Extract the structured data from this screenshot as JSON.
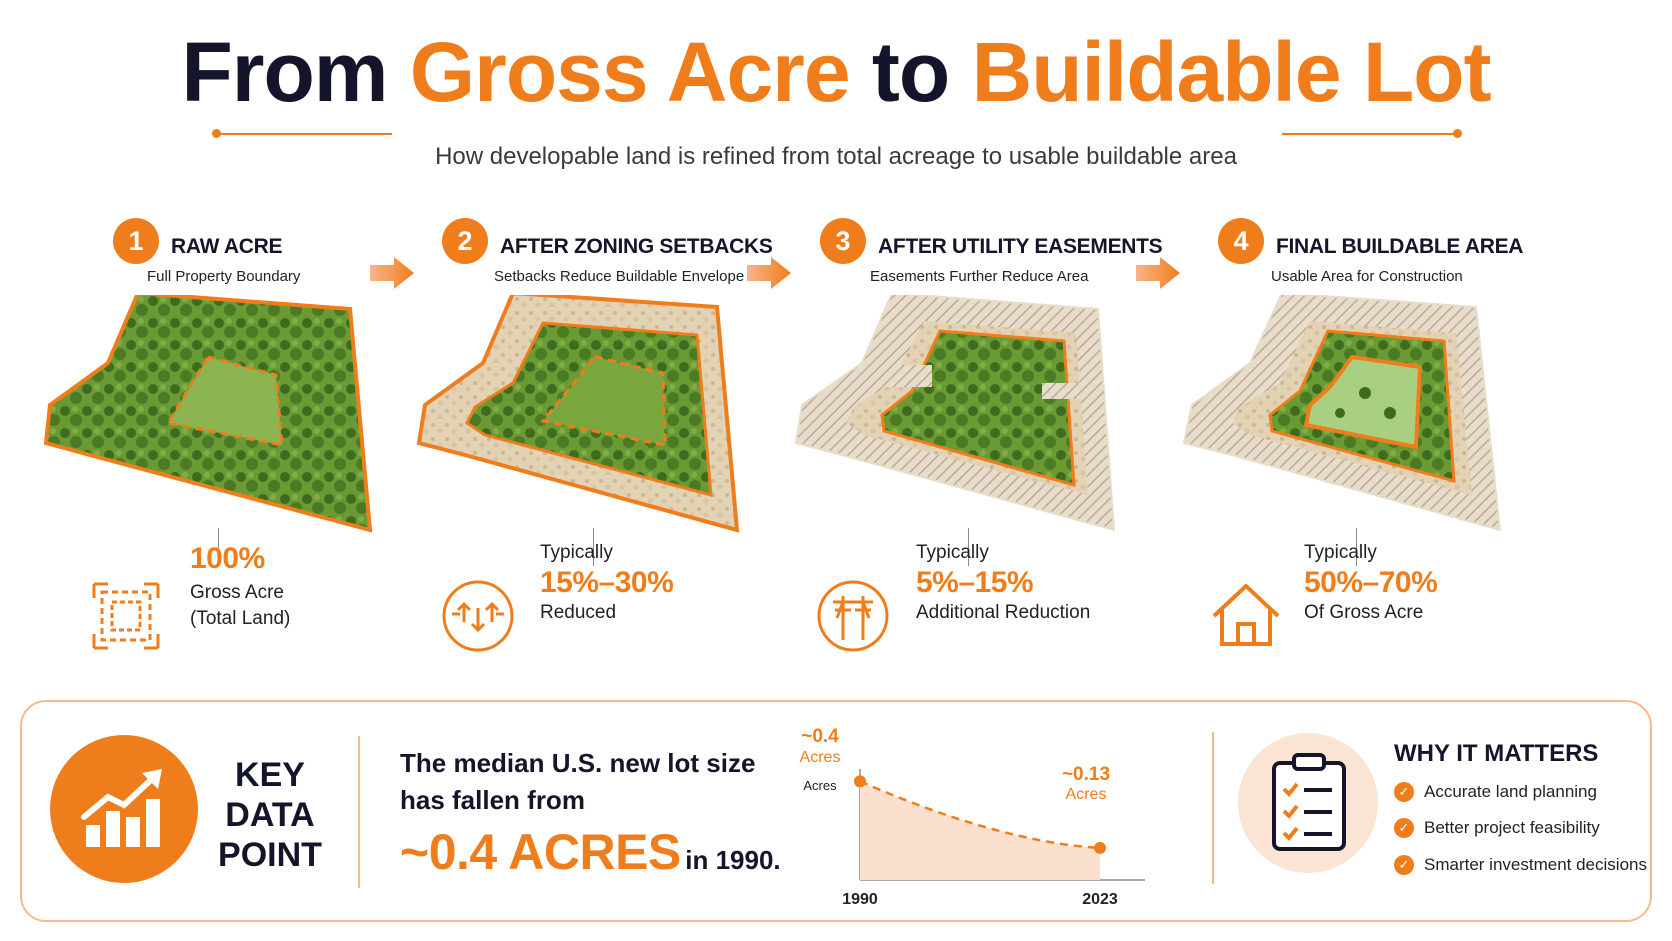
{
  "title": {
    "part1": "From",
    "part2": "Gross Acre",
    "part3": "to",
    "part4": "Buildable Lot"
  },
  "subtitle": "How developable land is refined from total acreage to usable buildable area",
  "colors": {
    "accent": "#f07d1c",
    "dark": "#14142b",
    "accent_light": "#fbe4d3"
  },
  "steps": [
    {
      "number": "1",
      "title": "RAW ACRE",
      "subtitle": "Full Property Boundary",
      "icon": "boundary-icon",
      "stat_pre": "",
      "stat_value": "100%",
      "stat_label_1": "Gross Acre",
      "stat_label_2": "(Total Land)"
    },
    {
      "number": "2",
      "title": "AFTER ZONING SETBACKS",
      "subtitle": "Setbacks Reduce Buildable Envelope",
      "icon": "setback-arrows-icon",
      "stat_pre": "Typically",
      "stat_value": "15%–30%",
      "stat_label_1": "Reduced",
      "stat_label_2": ""
    },
    {
      "number": "3",
      "title": "AFTER UTILITY EASEMENTS",
      "subtitle": "Easements Further Reduce Area",
      "icon": "utility-pole-icon",
      "stat_pre": "Typically",
      "stat_value": "5%–15%",
      "stat_label_1": "Additional Reduction",
      "stat_label_2": ""
    },
    {
      "number": "4",
      "title": "FINAL BUILDABLE AREA",
      "subtitle": "Usable Area for Construction",
      "icon": "house-icon",
      "stat_pre": "Typically",
      "stat_value": "50%–70%",
      "stat_label_1": "Of Gross Acre",
      "stat_label_2": ""
    }
  ],
  "key_data": {
    "label_1": "KEY",
    "label_2": "DATA",
    "label_3": "POINT",
    "icon": "growth-chart-icon",
    "text_1": "The median U.S. new lot size",
    "text_2": "has fallen from",
    "big_value": "~0.4 ACRES",
    "big_suffix": "in 1990."
  },
  "chart_data": {
    "type": "area",
    "x": [
      "1990",
      "2023"
    ],
    "values": [
      0.4,
      0.13
    ],
    "start_label_value": "~0.4",
    "start_label_unit": "Acres",
    "end_label_value": "~0.13",
    "end_label_unit": "Acres",
    "ylabel": "Acres",
    "ylim": [
      0,
      0.45
    ]
  },
  "why": {
    "title": "WHY IT MATTERS",
    "icon": "clipboard-checklist-icon",
    "items": [
      "Accurate land planning",
      "Better project feasibility",
      "Smarter investment decisions"
    ]
  }
}
